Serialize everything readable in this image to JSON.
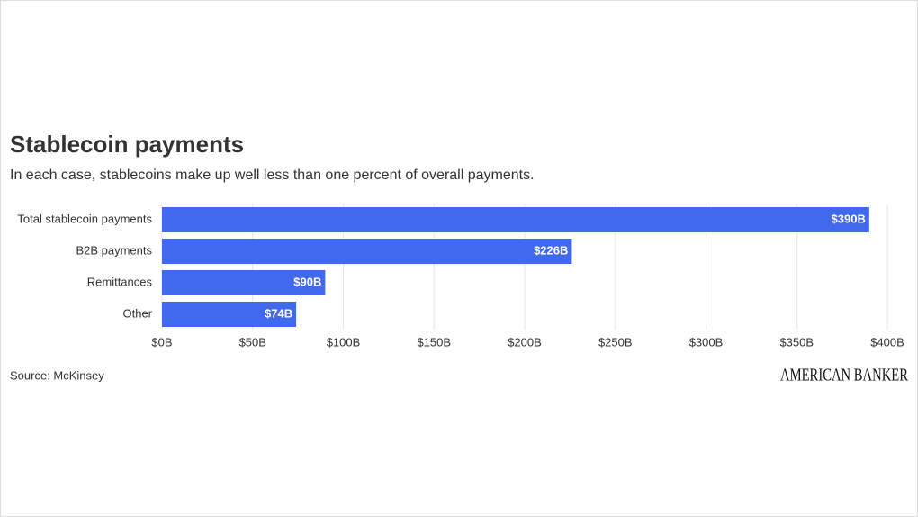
{
  "chart_data": {
    "type": "bar",
    "orientation": "horizontal",
    "title": "Stablecoin payments",
    "subtitle": "In each case, stablecoins make up well less than one percent of overall payments.",
    "categories": [
      "Total stablecoin payments",
      "B2B payments",
      "Remittances",
      "Other"
    ],
    "values": [
      390,
      226,
      90,
      74
    ],
    "value_labels": [
      "$390B",
      "$226B",
      "$90B",
      "$74B"
    ],
    "color": "#4169ee",
    "xlim": [
      0,
      400
    ],
    "xticks": [
      {
        "value": 0,
        "label": "$0B"
      },
      {
        "value": 50,
        "label": "$50B"
      },
      {
        "value": 100,
        "label": "$100B"
      },
      {
        "value": 150,
        "label": "$150B"
      },
      {
        "value": 200,
        "label": "$200B"
      },
      {
        "value": 250,
        "label": "$250B"
      },
      {
        "value": 300,
        "label": "$300B"
      },
      {
        "value": 350,
        "label": "$350B"
      },
      {
        "value": 400,
        "label": "$400B"
      }
    ],
    "grid": true,
    "source": "Source: McKinsey",
    "logo": "AMERICAN BANKER"
  }
}
